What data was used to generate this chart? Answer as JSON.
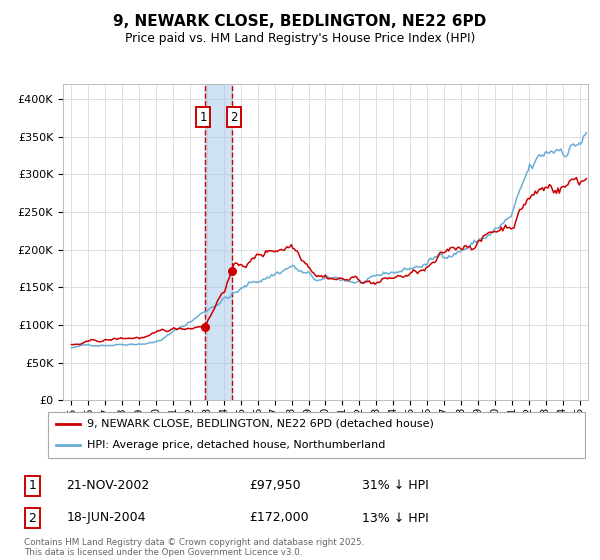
{
  "title": "9, NEWARK CLOSE, BEDLINGTON, NE22 6PD",
  "subtitle": "Price paid vs. HM Land Registry's House Price Index (HPI)",
  "hpi_label": "HPI: Average price, detached house, Northumberland",
  "property_label": "9, NEWARK CLOSE, BEDLINGTON, NE22 6PD (detached house)",
  "transactions": [
    {
      "id": 1,
      "date": "21-NOV-2002",
      "price": 97950,
      "pct": "31%",
      "dir": "↓",
      "x_year": 2002.89
    },
    {
      "id": 2,
      "date": "18-JUN-2004",
      "price": 172000,
      "pct": "13%",
      "dir": "↓",
      "x_year": 2004.46
    }
  ],
  "copyright": "Contains HM Land Registry data © Crown copyright and database right 2025.\nThis data is licensed under the Open Government Licence v3.0.",
  "hpi_color": "#6aaed6",
  "property_color": "#cc0000",
  "vline_color": "#cc0000",
  "highlight_box_color": "#aaccee",
  "background_color": "#ffffff",
  "grid_color": "#dddddd",
  "ylim": [
    0,
    420000
  ],
  "yticks": [
    0,
    50000,
    100000,
    150000,
    200000,
    250000,
    300000,
    350000,
    400000
  ],
  "xmin": 1994.5,
  "xmax": 2025.5,
  "xticks": [
    1995,
    1996,
    1997,
    1998,
    1999,
    2000,
    2001,
    2002,
    2003,
    2004,
    2005,
    2006,
    2007,
    2008,
    2009,
    2010,
    2011,
    2012,
    2013,
    2014,
    2015,
    2016,
    2017,
    2018,
    2019,
    2020,
    2021,
    2022,
    2023,
    2024,
    2025
  ]
}
